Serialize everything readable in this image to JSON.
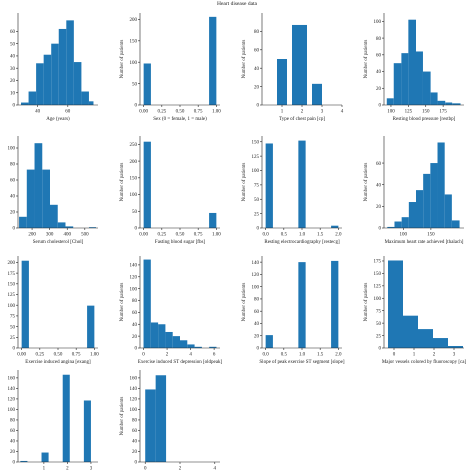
{
  "figure": {
    "title": "Heart disease data"
  },
  "colors": {
    "bar": "#1f77b4",
    "axis": "#222222"
  },
  "chart_data": [
    {
      "type": "bar",
      "xlabel": "Age (years)",
      "ylabel": "",
      "xlim": [
        27,
        80
      ],
      "ylim": [
        0,
        75
      ],
      "xticks": [
        {
          "v": 40,
          "t": "40"
        },
        {
          "v": 60,
          "t": "60"
        }
      ],
      "yticks": [
        {
          "v": 0,
          "t": "0"
        },
        {
          "v": 10,
          "t": "10"
        },
        {
          "v": 20,
          "t": "20"
        },
        {
          "v": 30,
          "t": "30"
        },
        {
          "v": 40,
          "t": "40"
        },
        {
          "v": 50,
          "t": "50"
        },
        {
          "v": 60,
          "t": "60"
        }
      ],
      "bins": [
        {
          "x0": 29,
          "x1": 34,
          "y": 2
        },
        {
          "x0": 34,
          "x1": 39,
          "y": 11
        },
        {
          "x0": 39,
          "x1": 44,
          "y": 34
        },
        {
          "x0": 44,
          "x1": 49,
          "y": 41
        },
        {
          "x0": 49,
          "x1": 54,
          "y": 50
        },
        {
          "x0": 54,
          "x1": 59,
          "y": 62
        },
        {
          "x0": 59,
          "x1": 64,
          "y": 69
        },
        {
          "x0": 64,
          "x1": 69,
          "y": 35
        },
        {
          "x0": 69,
          "x1": 74,
          "y": 11
        },
        {
          "x0": 74,
          "x1": 77,
          "y": 3
        }
      ]
    },
    {
      "type": "bar",
      "xlabel": "Sex (0 = female, 1 = male)",
      "ylabel": "Number of patients",
      "xlim": [
        -0.05,
        1.05
      ],
      "ylim": [
        0,
        215
      ],
      "xticks": [
        {
          "v": 0,
          "t": "0.00"
        },
        {
          "v": 0.25,
          "t": "0.25"
        },
        {
          "v": 0.5,
          "t": "0.50"
        },
        {
          "v": 0.75,
          "t": "0.75"
        },
        {
          "v": 1,
          "t": "1.00"
        }
      ],
      "yticks": [
        {
          "v": 0,
          "t": "0"
        },
        {
          "v": 50,
          "t": "50"
        },
        {
          "v": 100,
          "t": "100"
        },
        {
          "v": 150,
          "t": "150"
        },
        {
          "v": 200,
          "t": "200"
        }
      ],
      "bins": [
        {
          "x0": 0,
          "x1": 0.1,
          "y": 97
        },
        {
          "x0": 0.9,
          "x1": 1,
          "y": 206
        }
      ]
    },
    {
      "type": "bar",
      "xlabel": "Type of chest pain [cp]",
      "ylabel": "Number of patients",
      "xlim": [
        0,
        4
      ],
      "ylim": [
        0,
        100
      ],
      "xticks": [
        {
          "v": 1,
          "t": "1"
        },
        {
          "v": 2,
          "t": "2"
        },
        {
          "v": 3,
          "t": "3"
        },
        {
          "v": 4,
          "t": "4"
        }
      ],
      "yticks": [
        {
          "v": 0,
          "t": "0"
        },
        {
          "v": 20,
          "t": "20"
        },
        {
          "v": 40,
          "t": "40"
        },
        {
          "v": 60,
          "t": "60"
        },
        {
          "v": 80,
          "t": "80"
        }
      ],
      "bins": [
        {
          "x0": 0.75,
          "x1": 1.25,
          "y": 50
        },
        {
          "x0": 1.5,
          "x1": 2.25,
          "y": 87
        },
        {
          "x0": 2.5,
          "x1": 3,
          "y": 23
        }
      ]
    },
    {
      "type": "bar",
      "xlabel": "Resting blood pressure [restbp]",
      "ylabel": "Number of patients",
      "xlim": [
        90,
        205
      ],
      "ylim": [
        0,
        110
      ],
      "xticks": [
        {
          "v": 100,
          "t": "100"
        },
        {
          "v": 125,
          "t": "125"
        },
        {
          "v": 150,
          "t": "150"
        },
        {
          "v": 175,
          "t": "175"
        }
      ],
      "yticks": [
        {
          "v": 0,
          "t": "0"
        },
        {
          "v": 20,
          "t": "20"
        },
        {
          "v": 40,
          "t": "40"
        },
        {
          "v": 60,
          "t": "60"
        },
        {
          "v": 80,
          "t": "80"
        },
        {
          "v": 100,
          "t": "100"
        }
      ],
      "bins": [
        {
          "x0": 94,
          "x1": 104,
          "y": 8
        },
        {
          "x0": 104,
          "x1": 115,
          "y": 50
        },
        {
          "x0": 115,
          "x1": 125,
          "y": 62
        },
        {
          "x0": 125,
          "x1": 136,
          "y": 102
        },
        {
          "x0": 136,
          "x1": 146,
          "y": 64
        },
        {
          "x0": 146,
          "x1": 157,
          "y": 40
        },
        {
          "x0": 157,
          "x1": 167,
          "y": 15
        },
        {
          "x0": 167,
          "x1": 178,
          "y": 5
        },
        {
          "x0": 178,
          "x1": 188,
          "y": 3
        },
        {
          "x0": 188,
          "x1": 200,
          "y": 2
        }
      ]
    },
    {
      "type": "bar",
      "xlabel": "Serum cholesterol [Chol]",
      "ylabel": "",
      "xlim": [
        120,
        575
      ],
      "ylim": [
        0,
        115
      ],
      "xticks": [
        {
          "v": 200,
          "t": "200"
        },
        {
          "v": 300,
          "t": "300"
        },
        {
          "v": 400,
          "t": "400"
        },
        {
          "v": 500,
          "t": "500"
        }
      ],
      "yticks": [
        {
          "v": 0,
          "t": "0"
        },
        {
          "v": 20,
          "t": "20"
        },
        {
          "v": 40,
          "t": "40"
        },
        {
          "v": 60,
          "t": "60"
        },
        {
          "v": 80,
          "t": "80"
        },
        {
          "v": 100,
          "t": "100"
        }
      ],
      "bins": [
        {
          "x0": 126,
          "x1": 170,
          "y": 14
        },
        {
          "x0": 170,
          "x1": 214,
          "y": 73
        },
        {
          "x0": 214,
          "x1": 258,
          "y": 106
        },
        {
          "x0": 258,
          "x1": 302,
          "y": 73
        },
        {
          "x0": 302,
          "x1": 346,
          "y": 29
        },
        {
          "x0": 346,
          "x1": 390,
          "y": 7
        },
        {
          "x0": 390,
          "x1": 434,
          "y": 2
        },
        {
          "x0": 524,
          "x1": 564,
          "y": 1
        }
      ]
    },
    {
      "type": "bar",
      "xlabel": "Fasting blood sugar [fbs]",
      "ylabel": "Number of patients",
      "xlim": [
        -0.05,
        1.05
      ],
      "ylim": [
        0,
        275
      ],
      "xticks": [
        {
          "v": 0,
          "t": "0.00"
        },
        {
          "v": 0.25,
          "t": "0.25"
        },
        {
          "v": 0.5,
          "t": "0.50"
        },
        {
          "v": 0.75,
          "t": "0.75"
        },
        {
          "v": 1,
          "t": "1.00"
        }
      ],
      "yticks": [
        {
          "v": 0,
          "t": "0"
        },
        {
          "v": 50,
          "t": "50"
        },
        {
          "v": 100,
          "t": "100"
        },
        {
          "v": 150,
          "t": "150"
        },
        {
          "v": 200,
          "t": "200"
        },
        {
          "v": 250,
          "t": "250"
        }
      ],
      "bins": [
        {
          "x0": 0,
          "x1": 0.1,
          "y": 258
        },
        {
          "x0": 0.9,
          "x1": 1,
          "y": 45
        }
      ]
    },
    {
      "type": "bar",
      "xlabel": "Resting electrocardiography [restecg]",
      "ylabel": "Number of patients",
      "xlim": [
        -0.1,
        2.1
      ],
      "ylim": [
        0,
        160
      ],
      "xticks": [
        {
          "v": 0,
          "t": "0.0"
        },
        {
          "v": 0.5,
          "t": "0.5"
        },
        {
          "v": 1,
          "t": "1.0"
        },
        {
          "v": 1.5,
          "t": "1.5"
        },
        {
          "v": 2,
          "t": "2.0"
        }
      ],
      "yticks": [
        {
          "v": 0,
          "t": "0"
        },
        {
          "v": 25,
          "t": "25"
        },
        {
          "v": 50,
          "t": "50"
        },
        {
          "v": 75,
          "t": "75"
        },
        {
          "v": 100,
          "t": "100"
        },
        {
          "v": 125,
          "t": "125"
        },
        {
          "v": 150,
          "t": "150"
        }
      ],
      "bins": [
        {
          "x0": 0,
          "x1": 0.2,
          "y": 147
        },
        {
          "x0": 0.9,
          "x1": 1.1,
          "y": 152
        },
        {
          "x0": 1.8,
          "x1": 2,
          "y": 4
        }
      ]
    },
    {
      "type": "bar",
      "xlabel": "Maximum heart rate achieved [thalach]",
      "ylabel": "Number of patients",
      "xlim": [
        65,
        210
      ],
      "ylim": [
        0,
        85
      ],
      "xticks": [
        {
          "v": 100,
          "t": "100"
        },
        {
          "v": 150,
          "t": "150"
        }
      ],
      "yticks": [
        {
          "v": 0,
          "t": "0"
        },
        {
          "v": 20,
          "t": "20"
        },
        {
          "v": 40,
          "t": "40"
        },
        {
          "v": 60,
          "t": "60"
        }
      ],
      "bins": [
        {
          "x0": 71,
          "x1": 84,
          "y": 1
        },
        {
          "x0": 84,
          "x1": 97,
          "y": 6
        },
        {
          "x0": 97,
          "x1": 110,
          "y": 10
        },
        {
          "x0": 110,
          "x1": 123,
          "y": 24
        },
        {
          "x0": 123,
          "x1": 136,
          "y": 35
        },
        {
          "x0": 136,
          "x1": 149,
          "y": 50
        },
        {
          "x0": 149,
          "x1": 162,
          "y": 60
        },
        {
          "x0": 162,
          "x1": 175,
          "y": 79
        },
        {
          "x0": 175,
          "x1": 188,
          "y": 31
        },
        {
          "x0": 188,
          "x1": 202,
          "y": 7
        }
      ]
    },
    {
      "type": "bar",
      "xlabel": "Exercise induced angina [exang]",
      "ylabel": "",
      "xlim": [
        -0.05,
        1.05
      ],
      "ylim": [
        0,
        215
      ],
      "xticks": [
        {
          "v": 0,
          "t": "0.00"
        },
        {
          "v": 0.25,
          "t": "0.25"
        },
        {
          "v": 0.5,
          "t": "0.50"
        },
        {
          "v": 0.75,
          "t": "0.75"
        },
        {
          "v": 1,
          "t": "1.00"
        }
      ],
      "yticks": [
        {
          "v": 0,
          "t": "0"
        },
        {
          "v": 25,
          "t": "25"
        },
        {
          "v": 50,
          "t": "50"
        },
        {
          "v": 75,
          "t": "75"
        },
        {
          "v": 100,
          "t": "100"
        },
        {
          "v": 125,
          "t": "125"
        },
        {
          "v": 150,
          "t": "150"
        },
        {
          "v": 175,
          "t": "175"
        },
        {
          "v": 200,
          "t": "200"
        }
      ],
      "bins": [
        {
          "x0": 0,
          "x1": 0.1,
          "y": 204
        },
        {
          "x0": 0.9,
          "x1": 1,
          "y": 99
        }
      ]
    },
    {
      "type": "bar",
      "xlabel": "Exercise induced ST depression [oldpeak]",
      "ylabel": "Number of patients",
      "xlim": [
        -0.3,
        6.5
      ],
      "ylim": [
        0,
        155
      ],
      "xticks": [
        {
          "v": 0,
          "t": "0"
        },
        {
          "v": 2,
          "t": "2"
        },
        {
          "v": 4,
          "t": "4"
        },
        {
          "v": 6,
          "t": "6"
        }
      ],
      "yticks": [
        {
          "v": 0,
          "t": "0"
        },
        {
          "v": 20,
          "t": "20"
        },
        {
          "v": 40,
          "t": "40"
        },
        {
          "v": 60,
          "t": "60"
        },
        {
          "v": 80,
          "t": "80"
        },
        {
          "v": 100,
          "t": "100"
        },
        {
          "v": 120,
          "t": "120"
        },
        {
          "v": 140,
          "t": "140"
        }
      ],
      "bins": [
        {
          "x0": 0,
          "x1": 0.62,
          "y": 149
        },
        {
          "x0": 0.62,
          "x1": 1.24,
          "y": 43
        },
        {
          "x0": 1.24,
          "x1": 1.86,
          "y": 40
        },
        {
          "x0": 1.86,
          "x1": 2.48,
          "y": 27
        },
        {
          "x0": 2.48,
          "x1": 3.1,
          "y": 20
        },
        {
          "x0": 3.1,
          "x1": 3.72,
          "y": 13
        },
        {
          "x0": 3.72,
          "x1": 4.34,
          "y": 6
        },
        {
          "x0": 4.34,
          "x1": 4.96,
          "y": 2
        },
        {
          "x0": 5.58,
          "x1": 6.2,
          "y": 2
        }
      ]
    },
    {
      "type": "bar",
      "xlabel": "Slope of peak exercise ST segment [slope]",
      "ylabel": "Number of patients",
      "xlim": [
        -0.1,
        2.1
      ],
      "ylim": [
        0,
        150
      ],
      "xticks": [
        {
          "v": 0,
          "t": "0.0"
        },
        {
          "v": 0.5,
          "t": "0.5"
        },
        {
          "v": 1,
          "t": "1.0"
        },
        {
          "v": 1.5,
          "t": "1.5"
        },
        {
          "v": 2,
          "t": "2.0"
        }
      ],
      "yticks": [
        {
          "v": 0,
          "t": "0"
        },
        {
          "v": 20,
          "t": "20"
        },
        {
          "v": 40,
          "t": "40"
        },
        {
          "v": 60,
          "t": "60"
        },
        {
          "v": 80,
          "t": "80"
        },
        {
          "v": 100,
          "t": "100"
        },
        {
          "v": 120,
          "t": "120"
        },
        {
          "v": 140,
          "t": "140"
        }
      ],
      "bins": [
        {
          "x0": 0,
          "x1": 0.2,
          "y": 21
        },
        {
          "x0": 0.9,
          "x1": 1.1,
          "y": 140
        },
        {
          "x0": 1.8,
          "x1": 2,
          "y": 142
        }
      ]
    },
    {
      "type": "bar",
      "xlabel": "Major vessels colored by fluoroscopy [ca]",
      "ylabel": "Number of patients",
      "xlim": [
        -0.5,
        3.5
      ],
      "ylim": [
        0,
        185
      ],
      "xticks": [
        {
          "v": 0,
          "t": "0"
        },
        {
          "v": 1,
          "t": "1"
        },
        {
          "v": 2,
          "t": "2"
        },
        {
          "v": 3,
          "t": "3"
        }
      ],
      "yticks": [
        {
          "v": 0,
          "t": "0"
        },
        {
          "v": 25,
          "t": "25"
        },
        {
          "v": 50,
          "t": "50"
        },
        {
          "v": 75,
          "t": "75"
        },
        {
          "v": 100,
          "t": "100"
        },
        {
          "v": 125,
          "t": "125"
        },
        {
          "v": 150,
          "t": "150"
        },
        {
          "v": 175,
          "t": "175"
        }
      ],
      "bins": [
        {
          "x0": -0.3,
          "x1": 0.45,
          "y": 176
        },
        {
          "x0": 0.45,
          "x1": 1.2,
          "y": 65
        },
        {
          "x0": 1.2,
          "x1": 1.95,
          "y": 38
        },
        {
          "x0": 1.95,
          "x1": 2.7,
          "y": 20
        },
        {
          "x0": 2.7,
          "x1": 3.45,
          "y": 4
        }
      ]
    },
    {
      "type": "bar",
      "xlabel": "Thal",
      "ylabel": "",
      "xlim": [
        -0.1,
        3.3
      ],
      "ylim": [
        0,
        175
      ],
      "xticks": [
        {
          "v": 1,
          "t": "1"
        },
        {
          "v": 2,
          "t": "2"
        },
        {
          "v": 3,
          "t": "3"
        }
      ],
      "yticks": [
        {
          "v": 0,
          "t": "0"
        },
        {
          "v": 20,
          "t": "20"
        },
        {
          "v": 40,
          "t": "40"
        },
        {
          "v": 60,
          "t": "60"
        },
        {
          "v": 80,
          "t": "80"
        },
        {
          "v": 100,
          "t": "100"
        },
        {
          "v": 120,
          "t": "120"
        },
        {
          "v": 140,
          "t": "140"
        },
        {
          "v": 160,
          "t": "160"
        }
      ],
      "bins": [
        {
          "x0": 0,
          "x1": 0.3,
          "y": 2
        },
        {
          "x0": 0.9,
          "x1": 1.2,
          "y": 18
        },
        {
          "x0": 1.8,
          "x1": 2.1,
          "y": 166
        },
        {
          "x0": 2.7,
          "x1": 3,
          "y": 117
        }
      ]
    },
    {
      "type": "bar",
      "xlabel": "Heart disease [num]",
      "ylabel": "Number of patients",
      "xlim": [
        -0.3,
        4.3
      ],
      "ylim": [
        0,
        175
      ],
      "xticks": [
        {
          "v": 0,
          "t": "0"
        },
        {
          "v": 2,
          "t": "2"
        },
        {
          "v": 4,
          "t": "4"
        }
      ],
      "yticks": [
        {
          "v": 0,
          "t": "0"
        },
        {
          "v": 20,
          "t": "20"
        },
        {
          "v": 40,
          "t": "40"
        },
        {
          "v": 60,
          "t": "60"
        },
        {
          "v": 80,
          "t": "80"
        },
        {
          "v": 100,
          "t": "100"
        },
        {
          "v": 120,
          "t": "120"
        },
        {
          "v": 140,
          "t": "140"
        },
        {
          "v": 160,
          "t": "160"
        }
      ],
      "bins": [
        {
          "x0": 0,
          "x1": 0.6,
          "y": 138
        },
        {
          "x0": 0.6,
          "x1": 1.2,
          "y": 165
        }
      ]
    }
  ]
}
